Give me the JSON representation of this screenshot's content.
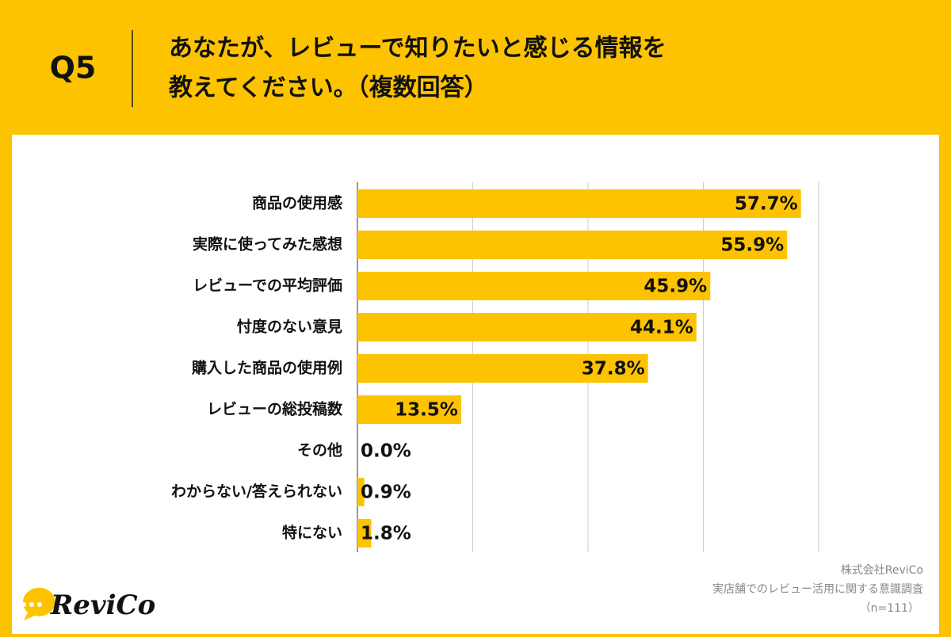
{
  "header": {
    "question": "Q5",
    "title_lines": [
      "あなたが、レビューで知りたいと感じる情報を",
      "教えてください。（複数回答）"
    ]
  },
  "chart_data": {
    "type": "bar",
    "orientation": "horizontal",
    "categories": [
      "商品の使用感",
      "実際に使ってみた感想",
      "レビューでの平均評価",
      "忖度のない意見",
      "購入した商品の使用例",
      "レビューの総投稿数",
      "その他",
      "わからない/答えられない",
      "特にない"
    ],
    "values": [
      57.7,
      55.9,
      45.9,
      44.1,
      37.8,
      13.5,
      0.0,
      0.9,
      1.8
    ],
    "value_labels": [
      "57.7%",
      "55.9%",
      "45.9%",
      "44.1%",
      "37.8%",
      "13.5%",
      "0.0%",
      "0.9%",
      "1.8%"
    ],
    "color": "#FDC300",
    "xlim": [
      0,
      60
    ],
    "xticks": [
      0,
      15,
      30,
      45,
      60
    ],
    "grid": true
  },
  "footer": {
    "company": "株式会社ReviCo",
    "survey": "実店舗でのレビュー活用に関する意識調査",
    "sample": "（n=111）"
  },
  "logo": "ReviCo"
}
